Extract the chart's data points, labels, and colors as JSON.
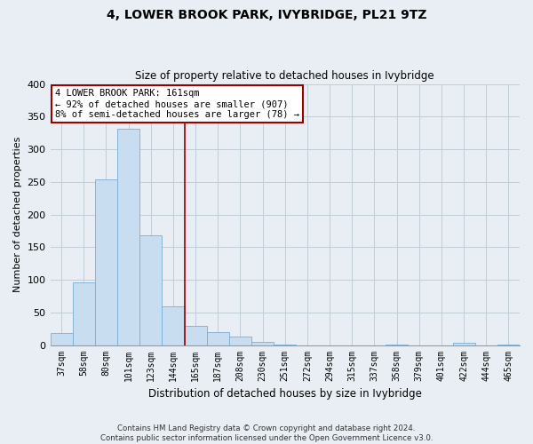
{
  "title": "4, LOWER BROOK PARK, IVYBRIDGE, PL21 9TZ",
  "subtitle": "Size of property relative to detached houses in Ivybridge",
  "xlabel": "Distribution of detached houses by size in Ivybridge",
  "ylabel": "Number of detached properties",
  "bin_labels": [
    "37sqm",
    "58sqm",
    "80sqm",
    "101sqm",
    "123sqm",
    "144sqm",
    "165sqm",
    "187sqm",
    "208sqm",
    "230sqm",
    "251sqm",
    "272sqm",
    "294sqm",
    "315sqm",
    "337sqm",
    "358sqm",
    "379sqm",
    "401sqm",
    "422sqm",
    "444sqm",
    "465sqm"
  ],
  "bar_values": [
    18,
    96,
    254,
    332,
    168,
    59,
    30,
    20,
    13,
    5,
    1,
    0,
    0,
    0,
    0,
    1,
    0,
    0,
    3,
    0,
    1
  ],
  "bar_color": "#c9ddf0",
  "bar_edge_color": "#7aadd4",
  "vline_x_index": 6,
  "vline_color": "#990000",
  "ylim": [
    0,
    400
  ],
  "yticks": [
    0,
    50,
    100,
    150,
    200,
    250,
    300,
    350,
    400
  ],
  "annotation_title": "4 LOWER BROOK PARK: 161sqm",
  "annotation_line1": "← 92% of detached houses are smaller (907)",
  "annotation_line2": "8% of semi-detached houses are larger (78) →",
  "annotation_box_color": "#ffffff",
  "annotation_box_edge": "#990000",
  "footer_line1": "Contains HM Land Registry data © Crown copyright and database right 2024.",
  "footer_line2": "Contains public sector information licensed under the Open Government Licence v3.0.",
  "background_color": "#e8eef4",
  "plot_bg_color": "#e8eef4",
  "grid_color": "#c0cdd8"
}
